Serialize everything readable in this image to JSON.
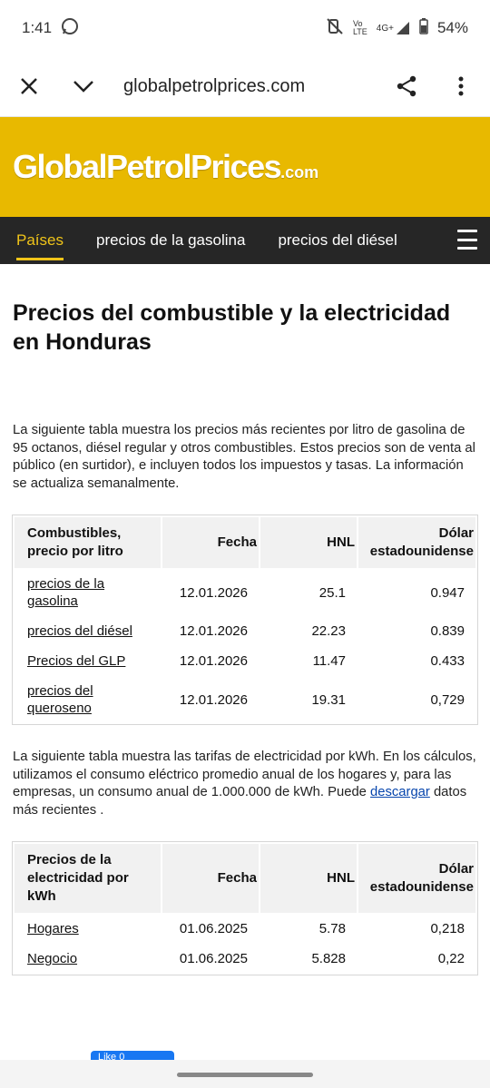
{
  "status": {
    "time": "1:41",
    "battery": "54%",
    "network": "4G+"
  },
  "browser": {
    "url": "globalpetrolprices.com"
  },
  "site": {
    "logo_main": "GlobalPetrolPrices",
    "logo_suffix": ".com",
    "nav": [
      "Países",
      "precios de la gasolina",
      "precios del diésel"
    ]
  },
  "page": {
    "title": "Precios del combustible y la electricidad en Honduras",
    "intro": "La siguiente tabla muestra los precios más recientes por litro de gasolina de 95 octanos, diésel regular y otros combustibles. Estos precios son de venta al público (en surtidor), e incluyen todos los impuestos y tasas. La información se actualiza semanalmente.",
    "fuel_table": {
      "headers": [
        "Combustibles, precio por litro",
        "Fecha",
        "HNL",
        "Dólar estadounidense"
      ],
      "rows": [
        [
          "precios de la gasolina",
          "12.01.2026",
          "25.1",
          "0.947"
        ],
        [
          "precios del diésel",
          "12.01.2026",
          "22.23",
          "0.839"
        ],
        [
          "Precios del GLP",
          "12.01.2026",
          "11.47",
          "0.433"
        ],
        [
          "precios del queroseno",
          "12.01.2026",
          "19.31",
          "0,729"
        ]
      ]
    },
    "elec_text_before": "La siguiente tabla muestra las tarifas de electricidad por kWh. En los cálculos, utilizamos el consumo eléctrico promedio anual de los hogares y, para las empresas, un consumo anual de 1.000.000 de kWh. Puede ",
    "elec_link": "descargar",
    "elec_text_after": " datos más recientes .",
    "elec_table": {
      "headers": [
        "Precios de la electricidad por kWh",
        "Fecha",
        "HNL",
        "Dólar estadounidense"
      ],
      "rows": [
        [
          "Hogares",
          "01.06.2025",
          "5.78",
          "0,218"
        ],
        [
          "Negocio",
          "01.06.2025",
          "5.828",
          "0,22"
        ]
      ]
    },
    "fb_label": "Like 0"
  }
}
